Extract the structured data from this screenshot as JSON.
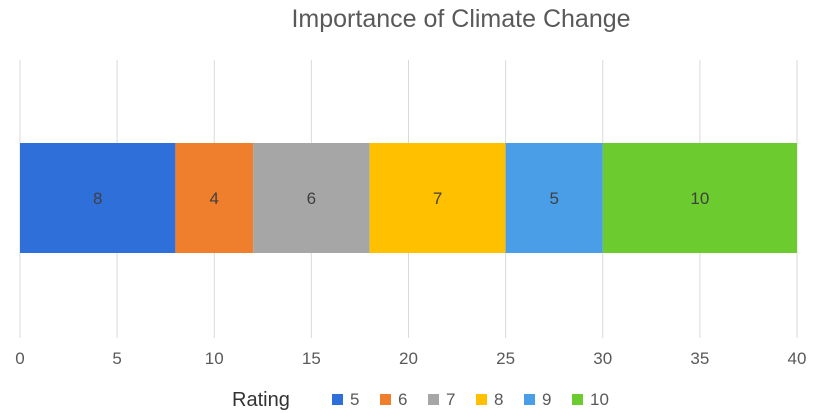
{
  "chart_data": {
    "type": "bar",
    "orientation": "horizontal",
    "stacked": true,
    "title": "Importance of Climate Change",
    "xlabel": "",
    "ylabel": "",
    "xlim": [
      0,
      40
    ],
    "x_ticks": [
      0,
      5,
      10,
      15,
      20,
      25,
      30,
      35,
      40
    ],
    "grid": true,
    "legend_title": "Rating",
    "legend_position": "bottom",
    "series": [
      {
        "name": "5",
        "value": 8,
        "color": "#2E6FD9"
      },
      {
        "name": "6",
        "value": 4,
        "color": "#F07F2D"
      },
      {
        "name": "7",
        "value": 6,
        "color": "#A6A6A6"
      },
      {
        "name": "8",
        "value": 7,
        "color": "#FFC000"
      },
      {
        "name": "9",
        "value": 5,
        "color": "#4A9EE8"
      },
      {
        "name": "10",
        "value": 10,
        "color": "#6CCB2E"
      }
    ]
  }
}
